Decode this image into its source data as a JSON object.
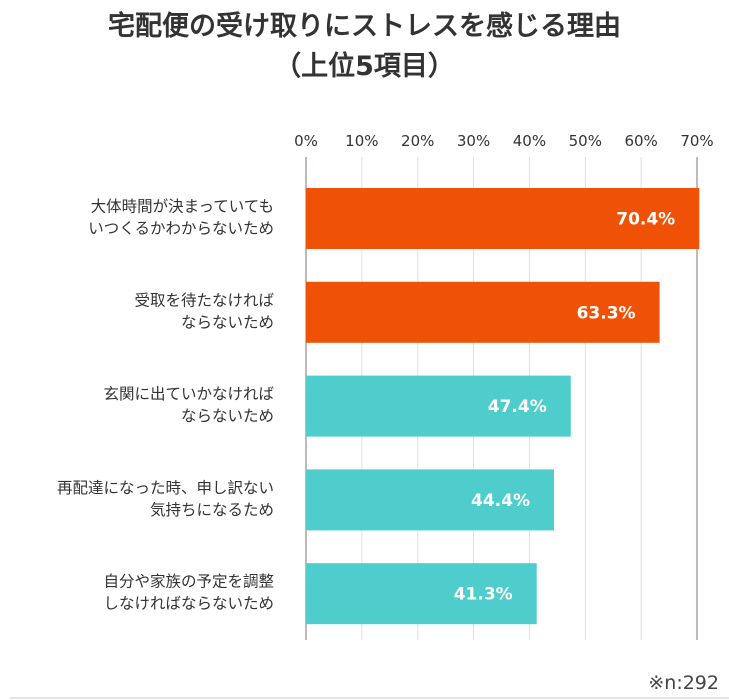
{
  "chart_data": {
    "type": "bar",
    "orientation": "horizontal",
    "title": "宅配便の受け取りにストレスを感じる理由",
    "subtitle": "（上位5項目）",
    "categories": [
      [
        "大体時間が決まっていても",
        "いつくるかわからないため"
      ],
      [
        "受取を待たなければ",
        "ならないため"
      ],
      [
        "玄関に出ていかなければ",
        "ならないため"
      ],
      [
        "再配達になった時、申し訳ない",
        "気持ちになるため"
      ],
      [
        "自分や家族の予定を調整",
        "しなければならないため"
      ]
    ],
    "values": [
      70.4,
      63.3,
      47.4,
      44.4,
      41.3
    ],
    "data_labels": [
      "70.4%",
      "63.3%",
      "47.4%",
      "44.4%",
      "41.3%"
    ],
    "colors": [
      "#ef5207",
      "#ef5207",
      "#4ecdcc",
      "#4ecdcc",
      "#4ecdcc"
    ],
    "xlim": [
      0,
      70
    ],
    "x_ticks": [
      "0%",
      "10%",
      "20%",
      "30%",
      "40%",
      "50%",
      "60%",
      "70%"
    ],
    "x_axis_position": "top",
    "grid": true,
    "note": "※n:292"
  }
}
